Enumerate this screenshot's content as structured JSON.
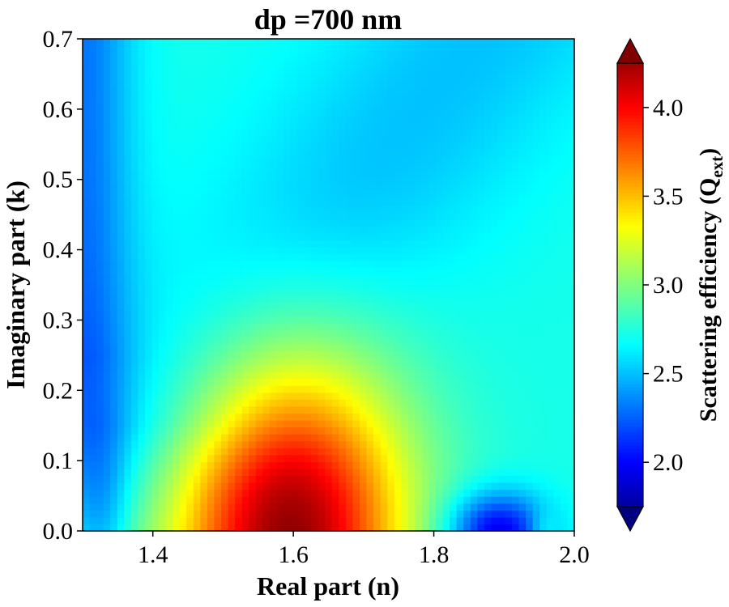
{
  "chart_data": {
    "type": "heatmap",
    "title": "dp =700 nm",
    "xlabel": "Real part (n)",
    "ylabel": "Imaginary part (k)",
    "xlim": [
      1.3,
      2.0
    ],
    "ylim": [
      0.0,
      0.7
    ],
    "xticks": [
      1.4,
      1.6,
      1.8,
      2.0
    ],
    "xtick_labels": [
      "1.4",
      "1.6",
      "1.8",
      "2.0"
    ],
    "yticks": [
      0.0,
      0.1,
      0.2,
      0.3,
      0.4,
      0.5,
      0.6,
      0.7
    ],
    "ytick_labels": [
      "0.0",
      "0.1",
      "0.2",
      "0.3",
      "0.4",
      "0.5",
      "0.6",
      "0.7"
    ],
    "grid": false,
    "colormap": "jet",
    "colorbar": {
      "label_main": "Scattering efficiency (Q",
      "label_sub": "ext",
      "label_end": ")",
      "vmin": 1.65,
      "vmax": 4.35,
      "ticks": [
        2.0,
        2.5,
        3.0,
        3.5,
        4.0
      ],
      "tick_labels": [
        "2.0",
        "2.5",
        "3.0",
        "3.5",
        "4.0"
      ],
      "extend": "both"
    },
    "grid_resolution": {
      "nx": 71,
      "ny": 71
    },
    "field_features": {
      "background_value": 2.72,
      "main_peak": {
        "n": 1.6,
        "k": 0.0,
        "value": 4.3
      },
      "minimum": {
        "n": 1.89,
        "k": 0.0,
        "value": 1.9
      },
      "left_edge_low": {
        "n": 1.3,
        "k": 0.35,
        "value": 2.25
      }
    }
  }
}
